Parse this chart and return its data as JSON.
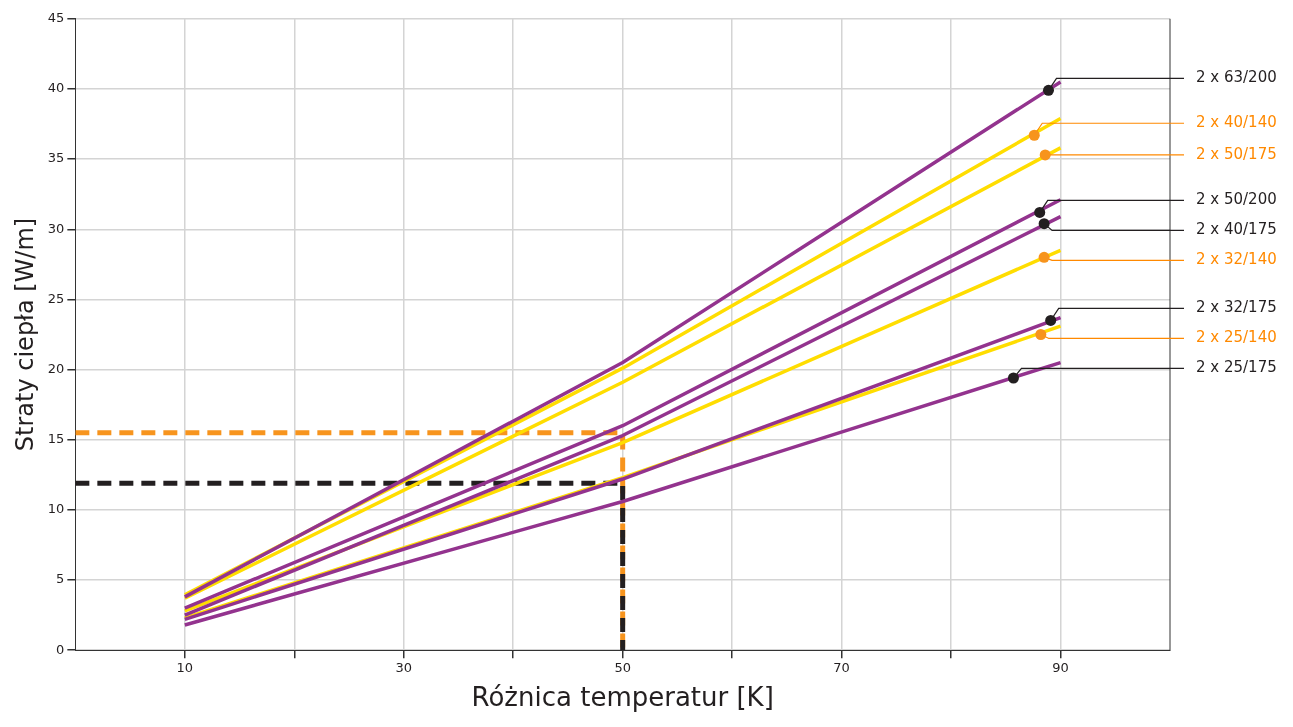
{
  "chart_data": {
    "type": "line",
    "xlabel": "Różnica temperatur [K]",
    "ylabel": "Straty ciepła [W/m]",
    "xlim": [
      0,
      100
    ],
    "xticks": [
      10,
      {
        "value": 20,
        "label": null
      },
      30,
      {
        "value": 40,
        "label": null
      },
      50,
      {
        "value": 60,
        "label": null
      },
      70,
      {
        "value": 80,
        "label": null
      },
      90
    ],
    "ylim": [
      0,
      45
    ],
    "yticks": [
      0,
      5,
      10,
      15,
      20,
      25,
      30,
      35,
      40,
      45
    ],
    "grid": true,
    "line_style": "solid",
    "series": [
      {
        "color": "#93338e",
        "x": [
          10,
          50,
          90
        ],
        "values": [
          3.8,
          20.5,
          40.5
        ]
      },
      {
        "color": "#ffdd00",
        "x": [
          10,
          50,
          90
        ],
        "values": [
          3.95,
          20.1,
          37.9
        ]
      },
      {
        "color": "#ffdd00",
        "x": [
          10,
          50,
          90
        ],
        "values": [
          3.7,
          19.1,
          35.8
        ]
      },
      {
        "color": "#93338e",
        "x": [
          10,
          50,
          90
        ],
        "values": [
          3.0,
          16.0,
          32.1
        ]
      },
      {
        "color": "#93338e",
        "x": [
          10,
          50,
          90
        ],
        "values": [
          2.5,
          15.3,
          30.9
        ]
      },
      {
        "color": "#ffdd00",
        "x": [
          10,
          50,
          90
        ],
        "values": [
          2.8,
          14.8,
          28.5
        ]
      },
      {
        "color": "#93338e",
        "x": [
          10,
          50,
          90
        ],
        "values": [
          2.2,
          12.2,
          23.7
        ]
      },
      {
        "color": "#ffdd00",
        "x": [
          10,
          50,
          90
        ],
        "values": [
          2.3,
          12.3,
          23.1
        ]
      },
      {
        "color": "#93338e",
        "x": [
          10,
          50,
          90
        ],
        "values": [
          1.8,
          10.6,
          20.5
        ]
      },
      {
        "color": "#231f20",
        "line_style": "dashed",
        "x": [
          0,
          50,
          50
        ],
        "values": [
          11.9,
          11.9,
          0
        ]
      },
      {
        "color": "#f7941d",
        "line_style": "dashed",
        "x": [
          0,
          50,
          50
        ],
        "values": [
          15.5,
          15.5,
          0
        ]
      }
    ],
    "annotations": [
      {
        "text": "2 x 63/200",
        "x": 88.9,
        "y": 39.9
      },
      {
        "text": "2 x 40/140",
        "x": 87.6,
        "y": 36.7
      },
      {
        "text": "2 x 50/175",
        "x": 88.6,
        "y": 35.3
      },
      {
        "text": "2 x 50/200",
        "x": 88.1,
        "y": 31.2
      },
      {
        "text": "2 x 40/175",
        "x": 88.5,
        "y": 30.4
      },
      {
        "text": "2 x 32/140",
        "x": 88.5,
        "y": 28.0
      },
      {
        "text": "2 x 32/175",
        "x": 89.1,
        "y": 23.5
      },
      {
        "text": "2 x 25/140",
        "x": 88.2,
        "y": 22.5
      },
      {
        "text": "2 x 25/175",
        "x": 85.7,
        "y": 19.4
      }
    ]
  }
}
